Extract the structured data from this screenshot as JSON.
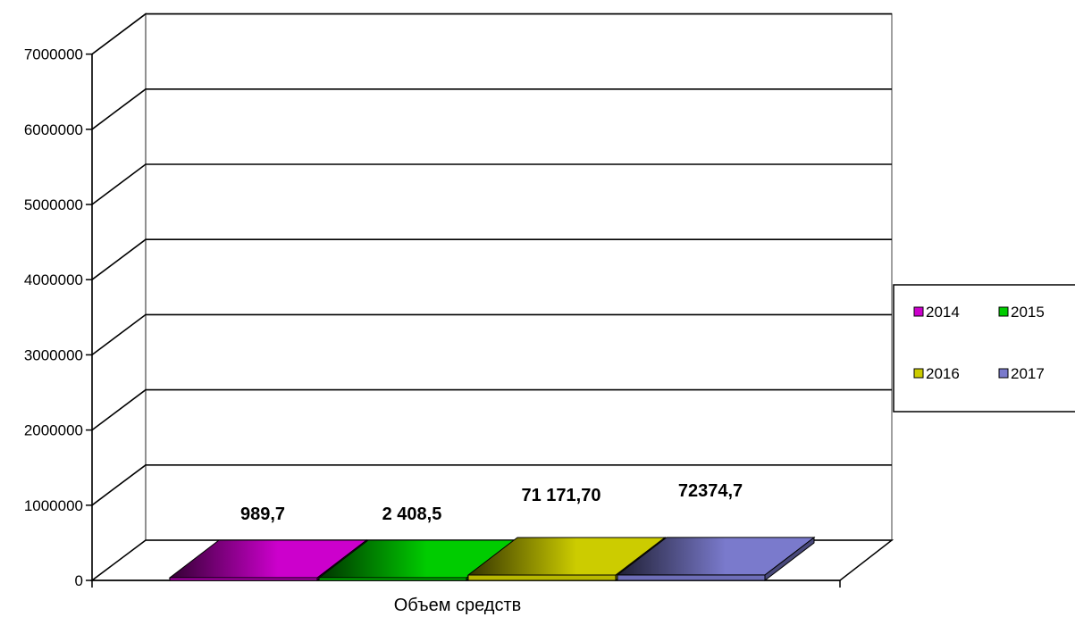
{
  "chart_data": {
    "type": "bar",
    "categories": [
      "Объем средств"
    ],
    "series": [
      {
        "name": "2014",
        "values": [
          989.7
        ],
        "label": "989,7",
        "color": "#cc00cc"
      },
      {
        "name": "2015",
        "values": [
          2408.5
        ],
        "label": "2 408,5",
        "color": "#00cc00"
      },
      {
        "name": "2016",
        "values": [
          71171.7
        ],
        "label": "71 171,70",
        "color": "#cccc00"
      },
      {
        "name": "2017",
        "values": [
          72374.7
        ],
        "label": "72374,7",
        "color": "#7a7acc"
      }
    ],
    "yticks": [
      "0",
      "1000000",
      "2000000",
      "3000000",
      "4000000",
      "5000000",
      "6000000",
      "7000000"
    ],
    "ylim": [
      0,
      7000000
    ],
    "xlabel": "",
    "ylabel": "",
    "title": "",
    "grid": true,
    "legend_position": "right",
    "style": "3d"
  }
}
